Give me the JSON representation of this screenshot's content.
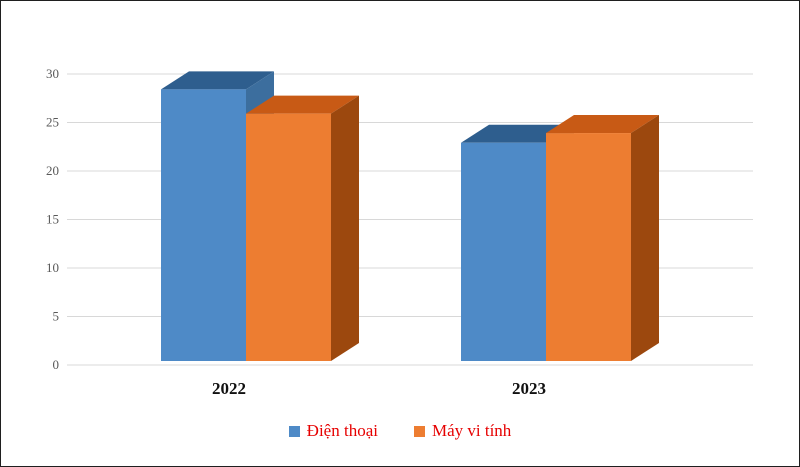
{
  "chart_data": {
    "type": "bar",
    "variant": "3d-clustered-column",
    "title": "",
    "xlabel": "",
    "ylabel": "",
    "categories": [
      "2022",
      "2023"
    ],
    "series": [
      {
        "name": "Điện thoại",
        "values": [
          28,
          22.5
        ],
        "color_front": "#4E8AC7",
        "color_top": "#2E5E8E",
        "color_side": "#3C6E9E"
      },
      {
        "name": "Máy vi tính",
        "values": [
          25.5,
          23.5
        ],
        "color_front": "#ED7D31",
        "color_top": "#C85A15",
        "color_side": "#9C480E"
      }
    ],
    "ylim": [
      0,
      30
    ],
    "yticks": [
      0,
      5,
      10,
      15,
      20,
      25,
      30
    ],
    "grid": true,
    "legend_position": "bottom",
    "gridline_color": "#D8D8D8",
    "axis_text_color": "#595959",
    "category_text_color": "#111111",
    "legend_text_color": "#E60000",
    "background_color": "#FFFFFF"
  }
}
